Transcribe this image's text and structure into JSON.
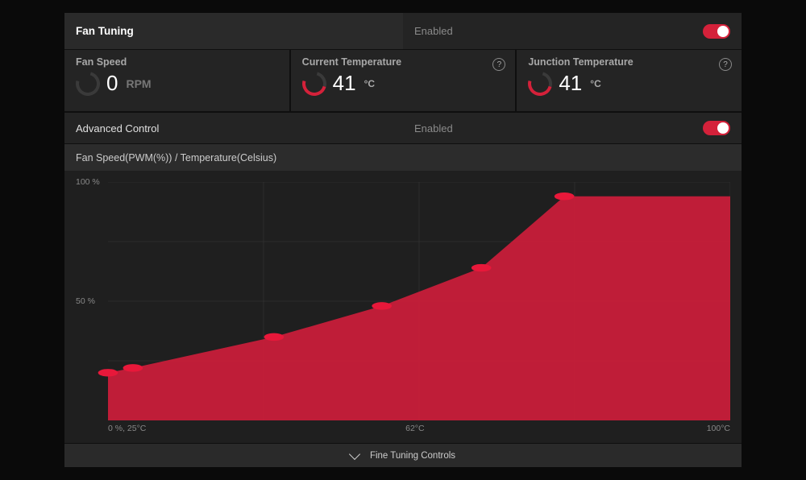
{
  "colors": {
    "accent": "#d4213a",
    "panel_bg": "#1f1f1f",
    "card_bg": "#242424",
    "header_bg": "#2a2a2a",
    "text_muted": "#8a8a8a",
    "text": "#e0e0e0",
    "grid": "#3a3a3a"
  },
  "fan_tuning": {
    "title": "Fan Tuning",
    "status_label": "Enabled",
    "toggle_on": true
  },
  "stats": {
    "fan_speed": {
      "label": "Fan Speed",
      "value": "0",
      "unit": "RPM"
    },
    "current_temp": {
      "label": "Current Temperature",
      "value": "41",
      "unit": "°C"
    },
    "junction_temp": {
      "label": "Junction Temperature",
      "value": "41",
      "unit": "°C"
    }
  },
  "advanced": {
    "title": "Advanced Control",
    "status_label": "Enabled",
    "toggle_on": true
  },
  "chart": {
    "title": "Fan Speed(PWM(%)) / Temperature(Celsius)",
    "type": "area",
    "x_domain": [
      25,
      100
    ],
    "y_domain": [
      0,
      100
    ],
    "y_ticks": [
      {
        "v": 100,
        "label": "100 %"
      },
      {
        "v": 50,
        "label": "50 %"
      }
    ],
    "x_ticks": [
      {
        "v": 25,
        "label": "0 %, 25°C",
        "align": "left"
      },
      {
        "v": 62,
        "label": "62°C",
        "align": "center"
      },
      {
        "v": 100,
        "label": "100°C",
        "align": "right"
      }
    ],
    "h_grid": [
      25,
      50,
      75,
      100
    ],
    "v_grid": [
      25,
      50,
      75,
      100
    ],
    "points": [
      {
        "x": 25,
        "y": 20
      },
      {
        "x": 28,
        "y": 22
      },
      {
        "x": 45,
        "y": 35
      },
      {
        "x": 58,
        "y": 48
      },
      {
        "x": 70,
        "y": 64
      },
      {
        "x": 80,
        "y": 94
      }
    ],
    "area_continues_to_x": 100,
    "area_continues_at_y": 94,
    "fill_color": "#c81e3a",
    "fill_opacity": 0.95,
    "point_radius": 5,
    "point_fill": "#e8183a",
    "grid_color": "#404040",
    "grid_width": 1
  },
  "footer": {
    "label": "Fine Tuning Controls"
  }
}
